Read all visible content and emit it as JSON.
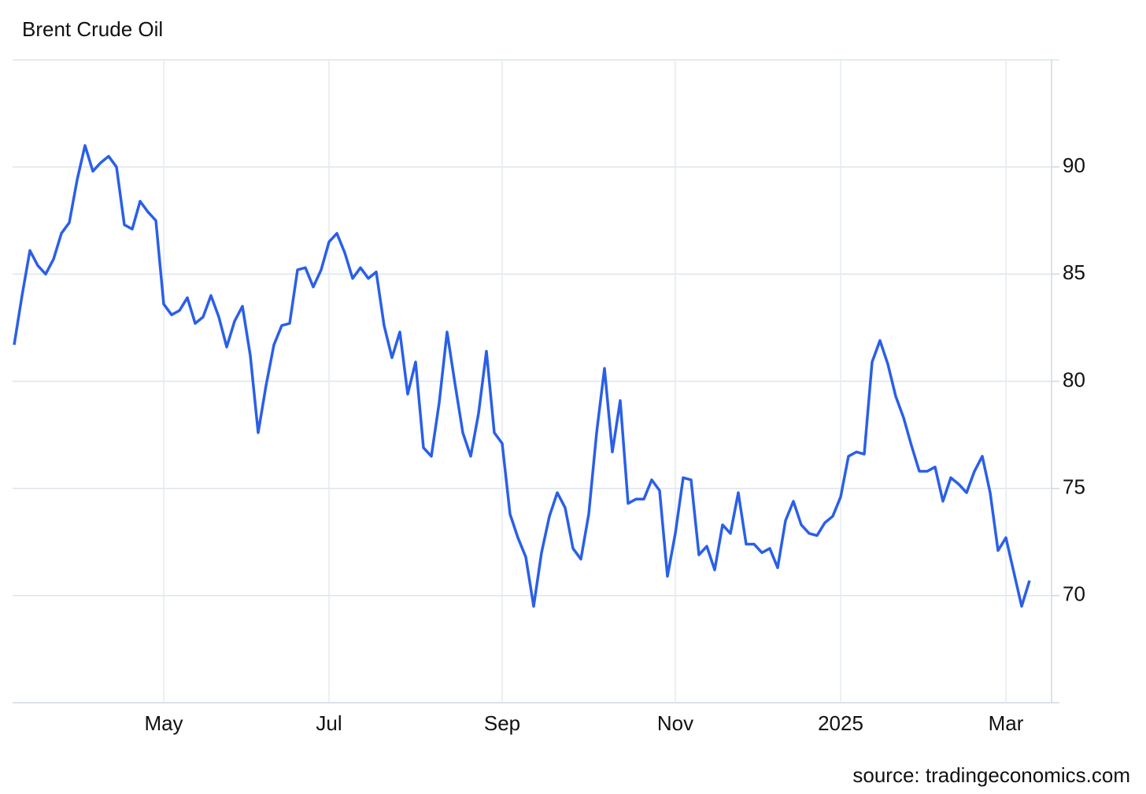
{
  "chart_data": {
    "type": "line",
    "title": "Brent Crude Oil",
    "source": "source: tradingeconomics.com",
    "categories": [
      null,
      null,
      null,
      null,
      null,
      null,
      null,
      null,
      null,
      null,
      null,
      null,
      null,
      null,
      null,
      null,
      null,
      null,
      null,
      "May",
      null,
      null,
      null,
      null,
      null,
      null,
      null,
      null,
      null,
      null,
      null,
      null,
      null,
      null,
      null,
      null,
      null,
      null,
      null,
      null,
      "Jul",
      null,
      null,
      null,
      null,
      null,
      null,
      null,
      null,
      null,
      null,
      null,
      null,
      null,
      null,
      null,
      null,
      null,
      null,
      null,
      null,
      null,
      "Sep",
      null,
      null,
      null,
      null,
      null,
      null,
      null,
      null,
      null,
      null,
      null,
      null,
      null,
      null,
      null,
      null,
      null,
      null,
      null,
      null,
      null,
      "Nov",
      null,
      null,
      null,
      null,
      null,
      null,
      null,
      null,
      null,
      null,
      null,
      null,
      null,
      null,
      null,
      null,
      null,
      null,
      null,
      null,
      "2025",
      null,
      null,
      null,
      null,
      null,
      null,
      null,
      null,
      null,
      null,
      null,
      null,
      null,
      null,
      null,
      null,
      null,
      null,
      null,
      null,
      "Mar",
      null,
      null,
      null
    ],
    "values": [
      81.7,
      84.0,
      86.1,
      85.4,
      85.0,
      85.7,
      86.9,
      87.4,
      89.4,
      91.0,
      89.8,
      90.2,
      90.5,
      90.0,
      87.3,
      87.1,
      88.4,
      87.9,
      87.5,
      83.6,
      83.1,
      83.3,
      83.9,
      82.7,
      83.0,
      84.0,
      83.0,
      81.6,
      82.8,
      83.5,
      81.2,
      77.6,
      79.8,
      81.7,
      82.6,
      82.7,
      85.2,
      85.3,
      84.4,
      85.2,
      86.5,
      86.9,
      86.0,
      84.8,
      85.3,
      84.8,
      85.1,
      82.6,
      81.1,
      82.3,
      79.4,
      80.9,
      76.9,
      76.5,
      79.0,
      82.3,
      79.9,
      77.6,
      76.5,
      78.5,
      81.4,
      77.6,
      77.1,
      73.8,
      72.7,
      71.8,
      69.5,
      72.0,
      73.7,
      74.8,
      74.1,
      72.2,
      71.7,
      73.8,
      77.6,
      80.6,
      76.7,
      79.1,
      74.3,
      74.5,
      74.5,
      75.4,
      74.9,
      70.9,
      72.9,
      75.5,
      75.4,
      71.9,
      72.3,
      71.2,
      73.3,
      72.9,
      74.8,
      72.4,
      72.4,
      72.0,
      72.2,
      71.3,
      73.5,
      74.4,
      73.3,
      72.9,
      72.8,
      73.4,
      73.7,
      74.6,
      76.5,
      76.7,
      76.6,
      80.9,
      81.9,
      80.8,
      79.3,
      78.3,
      77.0,
      75.8,
      75.8,
      76.0,
      74.4,
      75.5,
      75.2,
      74.8,
      75.8,
      76.5,
      74.8,
      72.1,
      72.7,
      71.1,
      69.5,
      70.7
    ],
    "color": "#2a5fe8",
    "ylim": [
      65,
      95
    ],
    "yticks": [
      70,
      75,
      80,
      85,
      90
    ],
    "grid": true
  }
}
